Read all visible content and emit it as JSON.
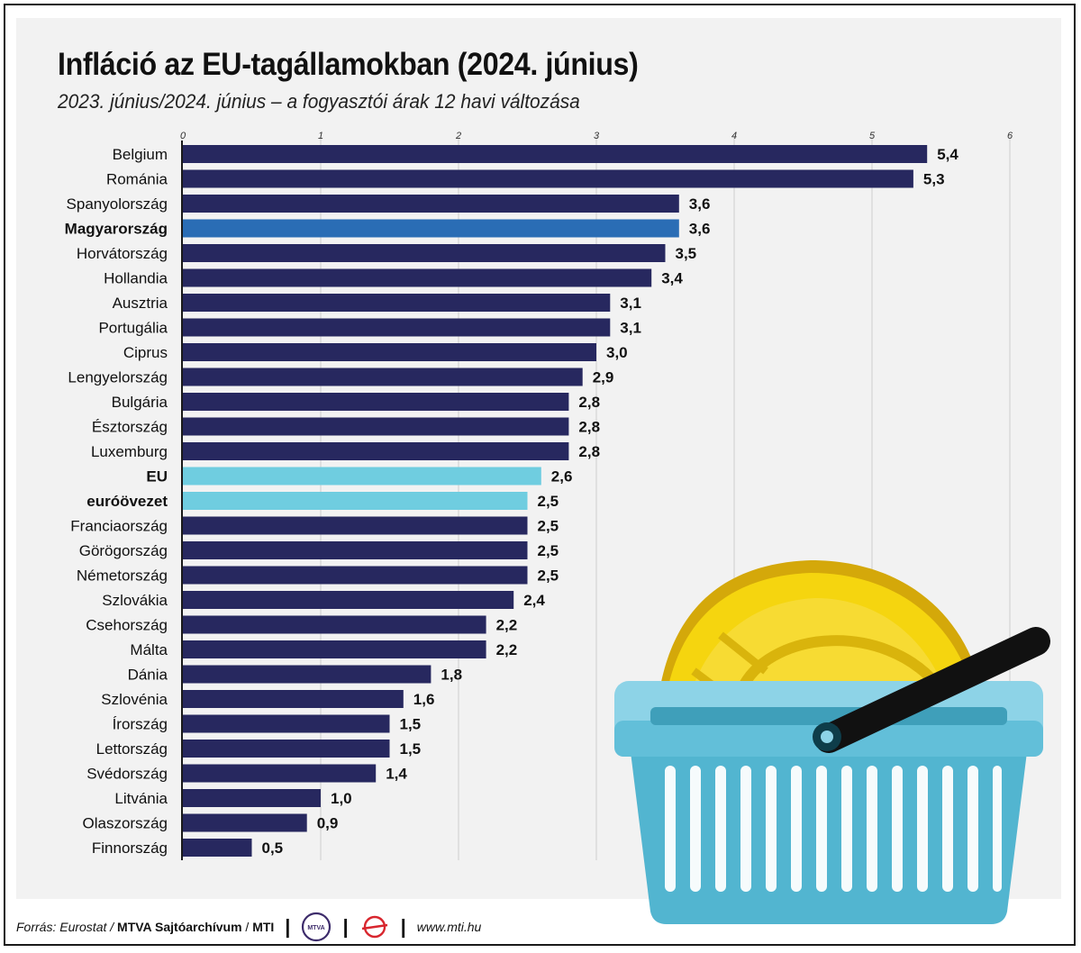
{
  "header": {
    "title": "Infláció az EU-tagállamokban (2024. június)",
    "subtitle": "2023. június/2024. június – a fogyasztói árak 12 havi változása"
  },
  "chart_data": {
    "type": "bar",
    "orientation": "horizontal",
    "title": "Infláció az EU-tagállamokban (2024. június)",
    "subtitle": "2023. június/2024. június – a fogyasztói árak 12 havi változása",
    "xlabel": "",
    "ylabel": "",
    "xlim": [
      0,
      6
    ],
    "x_ticks": [
      "0",
      "1",
      "2",
      "3",
      "4",
      "5",
      "6"
    ],
    "grid": true,
    "categories": [
      "Belgium",
      "Románia",
      "Spanyolország",
      "Magyarország",
      "Horvátország",
      "Hollandia",
      "Ausztria",
      "Portugália",
      "Ciprus",
      "Lengyelország",
      "Bulgária",
      "Észtország",
      "Luxemburg",
      "EU",
      "euróövezet",
      "Franciaország",
      "Görögország",
      "Németország",
      "Szlovákia",
      "Csehország",
      "Málta",
      "Dánia",
      "Szlovénia",
      "Írország",
      "Lettország",
      "Svédország",
      "Litvánia",
      "Olaszország",
      "Finnország"
    ],
    "values": [
      5.4,
      5.3,
      3.6,
      3.6,
      3.5,
      3.4,
      3.1,
      3.1,
      3.0,
      2.9,
      2.8,
      2.8,
      2.8,
      2.6,
      2.5,
      2.5,
      2.5,
      2.5,
      2.4,
      2.2,
      2.2,
      1.8,
      1.6,
      1.5,
      1.5,
      1.4,
      1.0,
      0.9,
      0.5
    ],
    "value_labels": [
      "5,4",
      "5,3",
      "3,6",
      "3,6",
      "3,5",
      "3,4",
      "3,1",
      "3,1",
      "3,0",
      "2,9",
      "2,8",
      "2,8",
      "2,8",
      "2,6",
      "2,5",
      "2,5",
      "2,5",
      "2,5",
      "2,4",
      "2,2",
      "2,2",
      "1,8",
      "1,6",
      "1,5",
      "1,5",
      "1,4",
      "1,0",
      "0,9",
      "0,5"
    ],
    "highlight": {
      "Magyarország": "hungary",
      "EU": "aggregate",
      "euróövezet": "aggregate"
    },
    "bold_categories": [
      "Magyarország",
      "EU",
      "euróövezet"
    ],
    "colors": {
      "default": "#27285f",
      "hungary": "#2a6db5",
      "aggregate": "#6fcde0",
      "grid": "#cfcfcf",
      "axis": "#1a1a1a"
    }
  },
  "footer": {
    "source_label": "Forrás: Eurostat /",
    "agency_1": "MTVA Sajtóarchívum",
    "divider": "/",
    "agency_2": "MTI",
    "logo_1_text": "MTVA",
    "url": "www.mti.hu"
  },
  "illustration": {
    "icon_1": "shopping-basket-icon",
    "icon_2": "coin-icon"
  }
}
